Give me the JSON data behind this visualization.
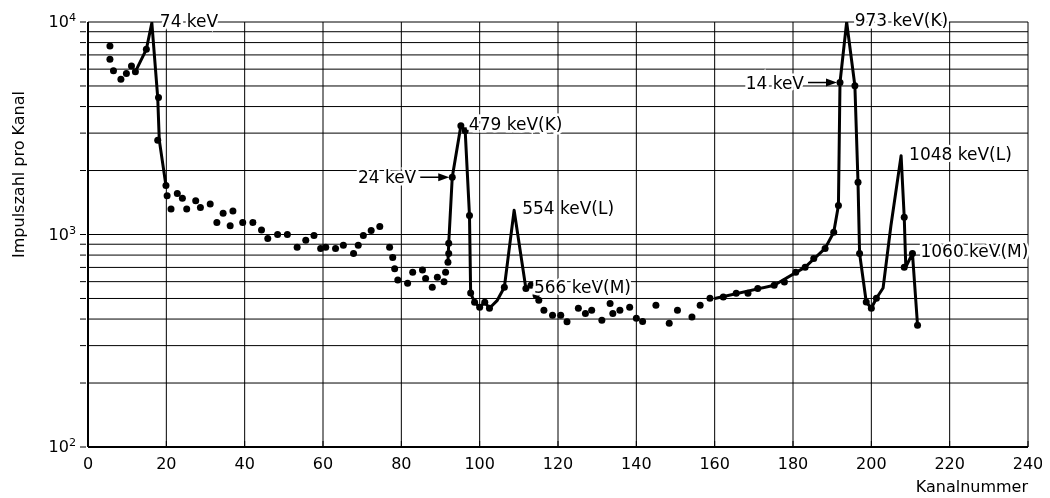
{
  "chart_data": {
    "type": "scatter",
    "xlabel": "Kanalnummer",
    "ylabel": "Impulszahl pro Kanal",
    "log": "y",
    "grid": true,
    "xlim": [
      0,
      240
    ],
    "xticks": [
      0,
      20,
      40,
      60,
      80,
      100,
      120,
      140,
      160,
      180,
      200,
      220,
      240
    ],
    "ylim": [
      100,
      10000
    ],
    "yticks": [
      {
        "value": 100,
        "label": "10$^{2}$"
      },
      {
        "value": 200,
        "label": null
      },
      {
        "value": 300,
        "label": null
      },
      {
        "value": 400,
        "label": null
      },
      {
        "value": 500,
        "label": null
      },
      {
        "value": 600,
        "label": null
      },
      {
        "value": 700,
        "label": null
      },
      {
        "value": 800,
        "label": null
      },
      {
        "value": 900,
        "label": null
      },
      {
        "value": 1000,
        "label": "10$^{3}$"
      },
      {
        "value": 2000,
        "label": null
      },
      {
        "value": 3000,
        "label": null
      },
      {
        "value": 4000,
        "label": null
      },
      {
        "value": 5000,
        "label": null
      },
      {
        "value": 6000,
        "label": null
      },
      {
        "value": 7000,
        "label": null
      },
      {
        "value": 8000,
        "label": null
      },
      {
        "value": 9000,
        "label": null
      },
      {
        "value": 10000,
        "label": "10$^{4}$"
      }
    ],
    "series": [
      {
        "color": "#000000",
        "marker": "circle",
        "x": [
          5.6,
          5.6,
          6.5,
          8.4,
          9.8,
          11.1,
          12.1,
          14.9,
          17.8,
          18,
          19.9,
          20.2,
          21.2,
          22.8,
          24.1,
          25.2,
          27.5,
          28.7,
          31.2,
          32.9,
          34.5,
          36.3,
          37,
          39.5,
          42.1,
          44.3,
          45.9,
          48.4,
          50.9,
          53.4,
          55.6,
          57.7,
          59.4,
          60.7,
          63.2,
          65.2,
          67.8,
          69,
          70.3,
          72.3,
          74.5,
          77,
          77.8,
          78.3,
          79.1,
          81.6,
          82.9,
          85.4,
          86.2,
          87.9,
          89.2,
          90.9,
          91.3,
          91.9,
          92.1,
          92.1,
          93,
          95.2,
          96.3,
          97.4,
          97.7,
          98.7,
          100,
          101.3,
          102.5,
          106.3,
          111.8,
          113.1,
          114.4,
          115.1,
          116.4,
          118.6,
          120.7,
          122.3,
          125.2,
          127,
          128.6,
          131.2,
          133.3,
          134,
          135.8,
          138.3,
          140,
          141.6,
          145,
          148.4,
          150.5,
          154.2,
          156.3,
          158.8,
          162.2,
          165.5,
          168.5,
          171,
          175.2,
          177.8,
          180.7,
          183.1,
          185.3,
          188.2,
          190.4,
          191.6,
          192,
          195.8,
          196.6,
          197,
          198.7,
          200,
          201.3,
          208.4,
          208.4,
          210.5,
          211.8
        ],
        "values": [
          7710,
          6680,
          5890,
          5380,
          5720,
          6210,
          5840,
          7440,
          2780,
          4410,
          1700,
          1520,
          1320,
          1560,
          1480,
          1320,
          1440,
          1340,
          1390,
          1140,
          1260,
          1100,
          1290,
          1140,
          1140,
          1050,
          958,
          1000,
          1000,
          870,
          940,
          990,
          860,
          870,
          860,
          890,
          815,
          890,
          990,
          1045,
          1090,
          870,
          780,
          690,
          610,
          590,
          665,
          680,
          620,
          565,
          630,
          600,
          665,
          740,
          815,
          910,
          1860,
          3250,
          3080,
          1230,
          530,
          480,
          455,
          480,
          450,
          565,
          557,
          577,
          518,
          490,
          440,
          417,
          417,
          388,
          450,
          425,
          440,
          395,
          474,
          425,
          440,
          455,
          403,
          390,
          464,
          382,
          440,
          409,
          464,
          501,
          508,
          529,
          529,
          557,
          577,
          597,
          665,
          702,
          771,
          860,
          1025,
          1370,
          5190,
          5010,
          1760,
          815,
          481,
          450,
          501,
          1205,
          702,
          815,
          374
        ]
      },
      {
        "type": "line",
        "color": "#000000",
        "marker": "none",
        "line_style": "solid",
        "x": [
          12.1,
          14.9,
          16.3,
          17.8,
          18.2,
          19.9,
          50,
          91.9,
          92.1,
          93,
          95.2,
          96.3,
          97.4,
          97.7,
          98.7,
          100,
          101.3,
          102.5,
          104.5,
          106.3,
          108.8,
          111.8,
          130,
          160,
          175.2,
          183.1,
          188.2,
          190.4,
          191.6,
          192,
          193.7,
          195.8,
          196.6,
          197,
          198.7,
          200,
          201.3,
          203,
          205,
          207.6,
          208.4,
          208.8,
          210.5,
          211.8
        ],
        "values": [
          5840,
          7440,
          9900,
          4410,
          2780,
          1700,
          null,
          740,
          910,
          1860,
          3250,
          3080,
          1230,
          530,
          480,
          455,
          480,
          450,
          490,
          565,
          1300,
          557,
          null,
          500,
          577,
          702,
          860,
          1025,
          1370,
          5190,
          10000,
          5010,
          1760,
          815,
          481,
          450,
          501,
          560,
          1100,
          2350,
          1205,
          702,
          815,
          374
        ]
      }
    ],
    "annotations": [
      {
        "text": "74 keV",
        "x": 16.3,
        "y": 9900
      },
      {
        "text": "479 keV(K)",
        "x": 95.2,
        "y": 3250
      },
      {
        "text": "24 keV",
        "x": 93,
        "y": 1860
      },
      {
        "text": "554 keV(L)",
        "x": 108.8,
        "y": 1300
      },
      {
        "text": "566 keV(M)",
        "x": 111.8,
        "y": 557
      },
      {
        "text": "973 keV(K)",
        "x": 193.7,
        "y": 10000
      },
      {
        "text": "14 keV",
        "x": 192,
        "y": 5190
      },
      {
        "text": "1048 keV(L)",
        "x": 207.6,
        "y": 2350
      },
      {
        "text": "1060 keV(M)",
        "x": 210.5,
        "y": 815
      }
    ]
  }
}
